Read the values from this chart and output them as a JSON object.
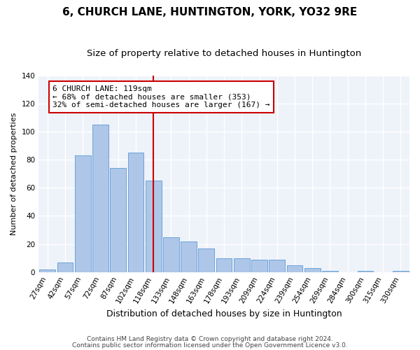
{
  "title": "6, CHURCH LANE, HUNTINGTON, YORK, YO32 9RE",
  "subtitle": "Size of property relative to detached houses in Huntington",
  "xlabel": "Distribution of detached houses by size in Huntington",
  "ylabel": "Number of detached properties",
  "categories": [
    "27sqm",
    "42sqm",
    "57sqm",
    "72sqm",
    "87sqm",
    "102sqm",
    "118sqm",
    "133sqm",
    "148sqm",
    "163sqm",
    "178sqm",
    "193sqm",
    "209sqm",
    "224sqm",
    "239sqm",
    "254sqm",
    "269sqm",
    "284sqm",
    "300sqm",
    "315sqm",
    "330sqm"
  ],
  "values": [
    2,
    7,
    83,
    105,
    74,
    85,
    65,
    25,
    22,
    17,
    10,
    10,
    9,
    9,
    5,
    3,
    1,
    0,
    1,
    0,
    1
  ],
  "bar_color": "#aec6e8",
  "bar_edge_color": "#5b9bd5",
  "vline_x_idx": 6,
  "vline_color": "#cc0000",
  "annotation_text": "6 CHURCH LANE: 119sqm\n← 68% of detached houses are smaller (353)\n32% of semi-detached houses are larger (167) →",
  "annotation_box_color": "#ffffff",
  "annotation_box_edge_color": "#cc0000",
  "footnote1": "Contains HM Land Registry data © Crown copyright and database right 2024.",
  "footnote2": "Contains public sector information licensed under the Open Government Licence v3.0.",
  "bg_color": "#eef2f9",
  "grid_color": "#ffffff",
  "ylim": [
    0,
    140
  ],
  "title_fontsize": 11,
  "subtitle_fontsize": 9.5,
  "xlabel_fontsize": 9,
  "ylabel_fontsize": 8,
  "tick_fontsize": 7.5,
  "annot_fontsize": 8,
  "footnote_fontsize": 6.5
}
